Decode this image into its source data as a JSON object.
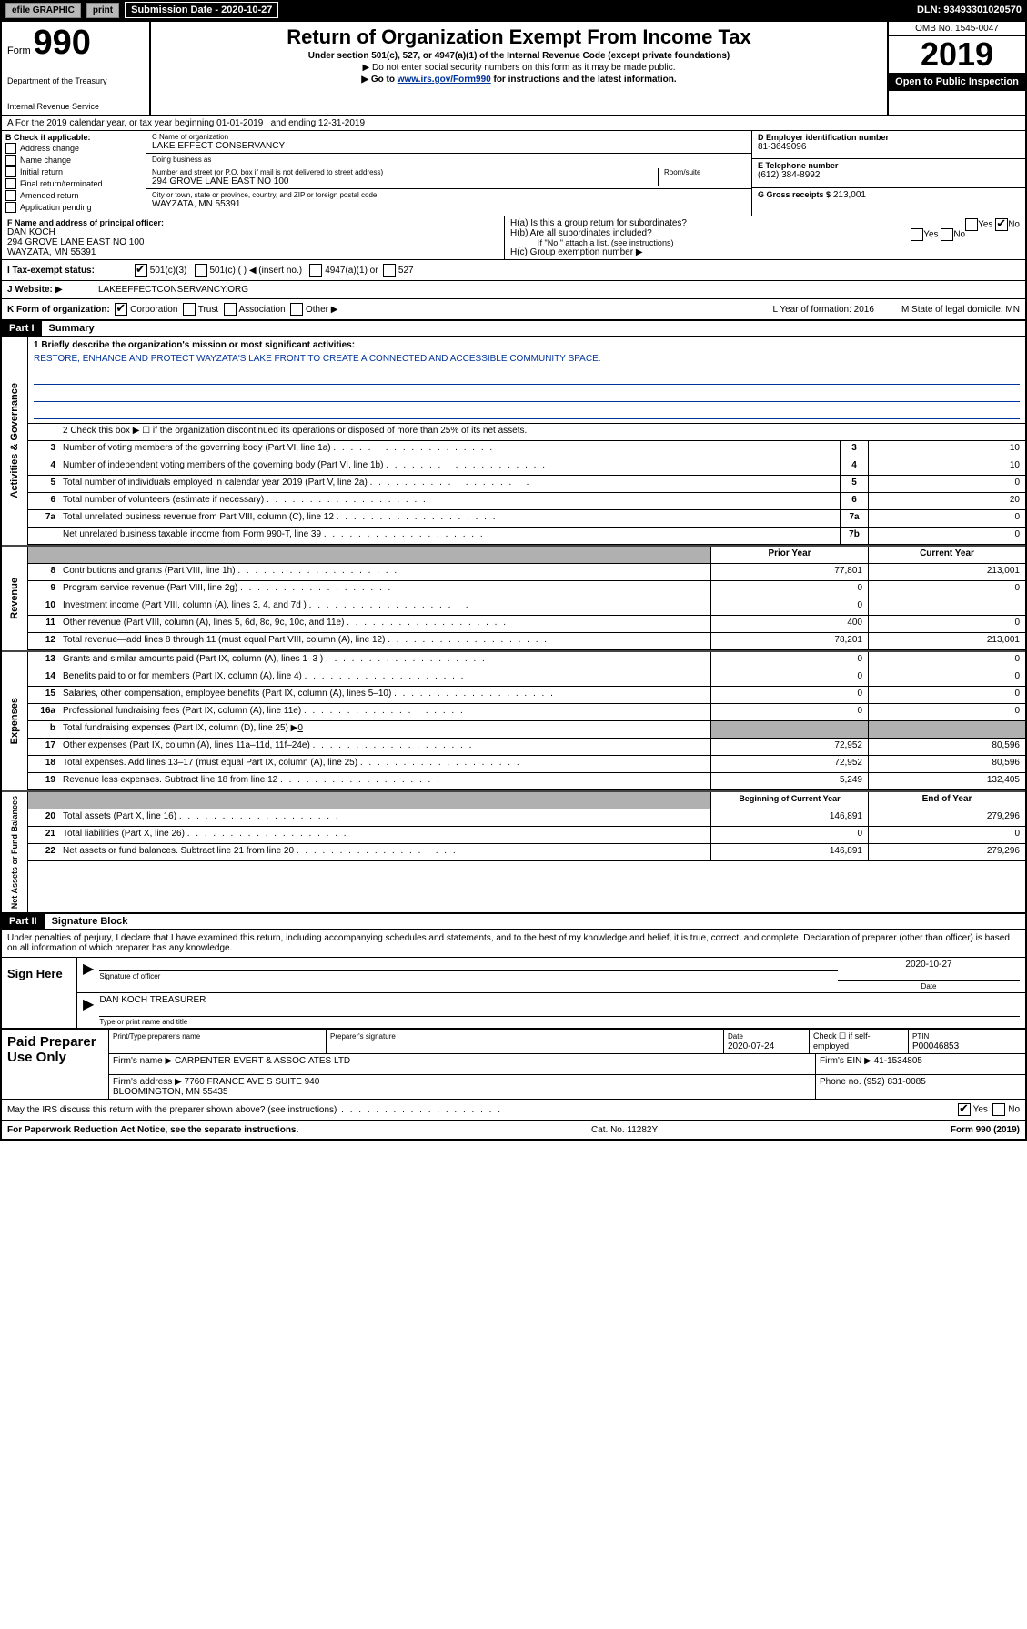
{
  "topbar": {
    "efile": "efile GRAPHIC",
    "print": "print",
    "sub_label": "Submission Date - 2020-10-27",
    "dln": "DLN: 93493301020570"
  },
  "header": {
    "form_label": "Form",
    "form_number": "990",
    "dept1": "Department of the Treasury",
    "dept2": "Internal Revenue Service",
    "title": "Return of Organization Exempt From Income Tax",
    "subtitle1": "Under section 501(c), 527, or 4947(a)(1) of the Internal Revenue Code (except private foundations)",
    "subtitle2": "▶ Do not enter social security numbers on this form as it may be made public.",
    "subtitle3_pre": "▶ Go to ",
    "subtitle3_link": "www.irs.gov/Form990",
    "subtitle3_post": " for instructions and the latest information.",
    "omb": "OMB No. 1545-0047",
    "year": "2019",
    "open_public": "Open to Public Inspection"
  },
  "row_a": "A For the 2019 calendar year, or tax year beginning 01-01-2019    , and ending 12-31-2019",
  "box_b": {
    "label": "B Check if applicable:",
    "opts": [
      "Address change",
      "Name change",
      "Initial return",
      "Final return/terminated",
      "Amended return",
      "Application pending"
    ]
  },
  "box_c": {
    "name_label": "C Name of organization",
    "name": "LAKE EFFECT CONSERVANCY",
    "dba_label": "Doing business as",
    "dba": "",
    "addr_label": "Number and street (or P.O. box if mail is not delivered to street address)",
    "room_label": "Room/suite",
    "addr": "294 GROVE LANE EAST NO 100",
    "city_label": "City or town, state or province, country, and ZIP or foreign postal code",
    "city": "WAYZATA, MN  55391"
  },
  "box_d": {
    "label": "D Employer identification number",
    "val": "81-3649096"
  },
  "box_e": {
    "label": "E Telephone number",
    "val": "(612) 384-8992"
  },
  "box_g": {
    "label": "G Gross receipts $",
    "val": "213,001"
  },
  "box_f": {
    "label": "F Name and address of principal officer:",
    "val": "DAN KOCH\n294 GROVE LANE EAST NO 100\nWAYZATA, MN  55391"
  },
  "box_h": {
    "ha": "H(a)  Is this a group return for subordinates?",
    "hb": "H(b)  Are all subordinates included?",
    "hb_note": "If \"No,\" attach a list. (see instructions)",
    "hc": "H(c)  Group exemption number ▶"
  },
  "row_i": {
    "label": "I   Tax-exempt status:",
    "o1": "501(c)(3)",
    "o2": "501(c) (   ) ◀ (insert no.)",
    "o3": "4947(a)(1) or",
    "o4": "527"
  },
  "row_j": {
    "label": "J   Website: ▶",
    "val": "LAKEEFFECTCONSERVANCY.ORG"
  },
  "row_k": {
    "label": "K Form of organization:",
    "opts": [
      "Corporation",
      "Trust",
      "Association",
      "Other ▶"
    ],
    "l": "L Year of formation: 2016",
    "m": "M State of legal domicile: MN"
  },
  "part1": {
    "hdr": "Part I",
    "title": "Summary",
    "line1_label": "1  Briefly describe the organization's mission or most significant activities:",
    "line1_val": "RESTORE, ENHANCE AND PROTECT WAYZATA'S LAKE FRONT TO CREATE A CONNECTED AND ACCESSIBLE COMMUNITY SPACE.",
    "line2": "2   Check this box ▶ ☐  if the organization discontinued its operations or disposed of more than 25% of its net assets.",
    "groups": {
      "gov": "Activities & Governance",
      "rev": "Revenue",
      "exp": "Expenses",
      "net": "Net Assets or Fund Balances"
    },
    "gov_rows": [
      {
        "n": "3",
        "d": "Number of voting members of the governing body (Part VI, line 1a)",
        "b": "3",
        "v": "10"
      },
      {
        "n": "4",
        "d": "Number of independent voting members of the governing body (Part VI, line 1b)",
        "b": "4",
        "v": "10"
      },
      {
        "n": "5",
        "d": "Total number of individuals employed in calendar year 2019 (Part V, line 2a)",
        "b": "5",
        "v": "0"
      },
      {
        "n": "6",
        "d": "Total number of volunteers (estimate if necessary)",
        "b": "6",
        "v": "20"
      },
      {
        "n": "7a",
        "d": "Total unrelated business revenue from Part VIII, column (C), line 12",
        "b": "7a",
        "v": "0"
      },
      {
        "n": "",
        "d": "Net unrelated business taxable income from Form 990-T, line 39",
        "b": "7b",
        "v": "0"
      }
    ],
    "col_hdr1": "Prior Year",
    "col_hdr2": "Current Year",
    "rev_rows": [
      {
        "n": "8",
        "d": "Contributions and grants (Part VIII, line 1h)",
        "v1": "77,801",
        "v2": "213,001"
      },
      {
        "n": "9",
        "d": "Program service revenue (Part VIII, line 2g)",
        "v1": "0",
        "v2": "0"
      },
      {
        "n": "10",
        "d": "Investment income (Part VIII, column (A), lines 3, 4, and 7d )",
        "v1": "0",
        "v2": ""
      },
      {
        "n": "11",
        "d": "Other revenue (Part VIII, column (A), lines 5, 6d, 8c, 9c, 10c, and 11e)",
        "v1": "400",
        "v2": "0"
      },
      {
        "n": "12",
        "d": "Total revenue—add lines 8 through 11 (must equal Part VIII, column (A), line 12)",
        "v1": "78,201",
        "v2": "213,001"
      }
    ],
    "exp_rows": [
      {
        "n": "13",
        "d": "Grants and similar amounts paid (Part IX, column (A), lines 1–3 )",
        "v1": "0",
        "v2": "0"
      },
      {
        "n": "14",
        "d": "Benefits paid to or for members (Part IX, column (A), line 4)",
        "v1": "0",
        "v2": "0"
      },
      {
        "n": "15",
        "d": "Salaries, other compensation, employee benefits (Part IX, column (A), lines 5–10)",
        "v1": "0",
        "v2": "0"
      },
      {
        "n": "16a",
        "d": "Professional fundraising fees (Part IX, column (A), line 11e)",
        "v1": "0",
        "v2": "0"
      }
    ],
    "exp_b": {
      "n": "b",
      "d": "Total fundraising expenses (Part IX, column (D), line 25) ▶",
      "u": "0"
    },
    "exp_rows2": [
      {
        "n": "17",
        "d": "Other expenses (Part IX, column (A), lines 11a–11d, 11f–24e)",
        "v1": "72,952",
        "v2": "80,596"
      },
      {
        "n": "18",
        "d": "Total expenses. Add lines 13–17 (must equal Part IX, column (A), line 25)",
        "v1": "72,952",
        "v2": "80,596"
      },
      {
        "n": "19",
        "d": "Revenue less expenses. Subtract line 18 from line 12",
        "v1": "5,249",
        "v2": "132,405"
      }
    ],
    "net_hdr1": "Beginning of Current Year",
    "net_hdr2": "End of Year",
    "net_rows": [
      {
        "n": "20",
        "d": "Total assets (Part X, line 16)",
        "v1": "146,891",
        "v2": "279,296"
      },
      {
        "n": "21",
        "d": "Total liabilities (Part X, line 26)",
        "v1": "0",
        "v2": "0"
      },
      {
        "n": "22",
        "d": "Net assets or fund balances. Subtract line 21 from line 20",
        "v1": "146,891",
        "v2": "279,296"
      }
    ]
  },
  "part2": {
    "hdr": "Part II",
    "title": "Signature Block",
    "declare": "Under penalties of perjury, I declare that I have examined this return, including accompanying schedules and statements, and to the best of my knowledge and belief, it is true, correct, and complete. Declaration of preparer (other than officer) is based on all information of which preparer has any knowledge.",
    "sign_here": "Sign Here",
    "sig_date": "2020-10-27",
    "sig_label1": "Signature of officer",
    "sig_label1b": "Date",
    "sig_name": "DAN KOCH  TREASURER",
    "sig_label2": "Type or print name and title",
    "paid_label": "Paid Preparer Use Only",
    "p_r1_c1_label": "Print/Type preparer's name",
    "p_r1_c2_label": "Preparer's signature",
    "p_r1_c3_label": "Date",
    "p_r1_c3_val": "2020-07-24",
    "p_r1_c4_label": "Check ☐ if self-employed",
    "p_r1_c5_label": "PTIN",
    "p_r1_c5_val": "P00046853",
    "p_r2_c1_label": "Firm's name    ▶",
    "p_r2_c1_val": "CARPENTER EVERT & ASSOCIATES LTD",
    "p_r2_c2_label": "Firm's EIN ▶",
    "p_r2_c2_val": "41-1534805",
    "p_r3_c1_label": "Firm's address ▶",
    "p_r3_c1_val": "7760 FRANCE AVE S SUITE 940\nBLOOMINGTON, MN  55435",
    "p_r3_c2_label": "Phone no.",
    "p_r3_c2_val": "(952) 831-0085",
    "discuss": "May the IRS discuss this return with the preparer shown above? (see instructions)",
    "footer_l": "For Paperwork Reduction Act Notice, see the separate instructions.",
    "footer_c": "Cat. No. 11282Y",
    "footer_r": "Form 990 (2019)"
  },
  "colors": {
    "link": "#003399",
    "shade": "#b0b0b0"
  }
}
